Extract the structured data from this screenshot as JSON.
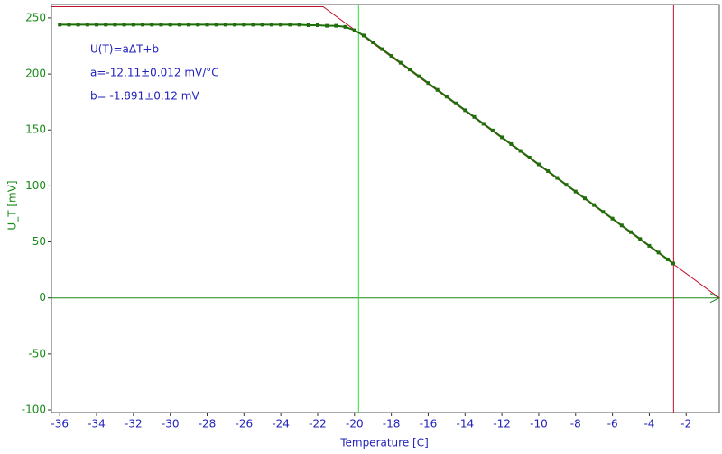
{
  "chart_data": {
    "type": "scatter",
    "xlabel": "Temperature [C]",
    "ylabel": "U_T [mV]",
    "annotations": [
      "U(T)=aΔT+b",
      "a=-12.11±0.012 mV/°C",
      "b= -1.891±0.12 mV"
    ],
    "x": [
      -36,
      -35.5,
      -35,
      -34.5,
      -34,
      -33.5,
      -33,
      -32.5,
      -32,
      -31.5,
      -31,
      -30.5,
      -30,
      -29.5,
      -29,
      -28.5,
      -28,
      -27.5,
      -27,
      -26.5,
      -26,
      -25.5,
      -25,
      -24.5,
      -24,
      -23.5,
      -23,
      -22.5,
      -22,
      -21.5,
      -21,
      -20.5,
      -20,
      -19.5,
      -19,
      -18.5,
      -18,
      -17.5,
      -17,
      -16.5,
      -16,
      -15.5,
      -15,
      -14.5,
      -14,
      -13.5,
      -13,
      -12.5,
      -12,
      -11.5,
      -11,
      -10.5,
      -10,
      -9.5,
      -9,
      -8.5,
      -8,
      -7.5,
      -7,
      -6.5,
      -6,
      -5.5,
      -5,
      -4.5,
      -4,
      -3.5,
      -3,
      -2.7
    ],
    "values": [
      244,
      244,
      244,
      244,
      244,
      244,
      244,
      244,
      244,
      244,
      244,
      244,
      244,
      244,
      244,
      244,
      244,
      244,
      244,
      244,
      244,
      244,
      244,
      244,
      244,
      244,
      244,
      243.5,
      243.5,
      243,
      243,
      242,
      239,
      234.3,
      228.2,
      222.1,
      216.1,
      210.0,
      204.0,
      197.9,
      191.9,
      185.8,
      179.8,
      173.7,
      167.6,
      161.6,
      155.5,
      149.5,
      143.4,
      137.4,
      131.3,
      125.3,
      119.2,
      113.2,
      107.1,
      101.0,
      95.0,
      88.9,
      82.9,
      76.8,
      70.8,
      64.7,
      58.7,
      52.6,
      46.5,
      40.5,
      34.4,
      30.8
    ],
    "color": "#1f6e0a",
    "fit_line": {
      "x": [
        -36.45,
        -21.7,
        -0.2
      ],
      "y": [
        260,
        260,
        0
      ],
      "color": "#c0102a"
    },
    "markers": [
      {
        "x": -19.78,
        "color": "#33dd33"
      },
      {
        "x": -2.68,
        "color": "#c0102a"
      }
    ],
    "zero_line_color": "#1a8a1a",
    "xlim": [
      -36.45,
      -0.2
    ],
    "ylim": [
      -102.4,
      262
    ],
    "xticks": [
      -36,
      -34,
      -32,
      -30,
      -28,
      -26,
      -24,
      -22,
      -20,
      -18,
      -16,
      -14,
      -12,
      -10,
      -8,
      -6,
      -4,
      -2
    ],
    "yticks": [
      -100,
      -50,
      0,
      50,
      100,
      150,
      200,
      250
    ]
  }
}
